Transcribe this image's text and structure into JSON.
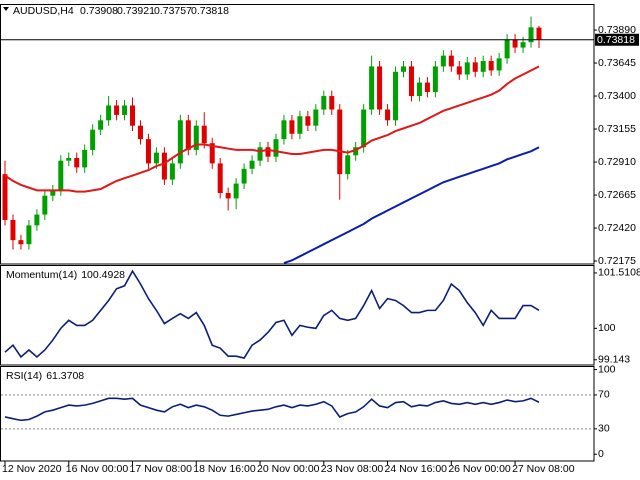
{
  "chart_data": [
    {
      "type": "candlestick",
      "title": "AUDUSD,H4",
      "categories": [
        "12 Nov 2020",
        null,
        null,
        null,
        null,
        null,
        null,
        null,
        "16 Nov 00:00",
        null,
        null,
        null,
        null,
        null,
        null,
        null,
        "17 Nov 08:00",
        null,
        null,
        null,
        null,
        null,
        null,
        null,
        "18 Nov 16:00",
        null,
        null,
        null,
        null,
        null,
        null,
        null,
        "20 Nov 00:00",
        null,
        null,
        null,
        null,
        null,
        null,
        null,
        "23 Nov 08:00",
        null,
        null,
        null,
        null,
        null,
        null,
        null,
        "24 Nov 16:00",
        null,
        null,
        null,
        null,
        null,
        null,
        null,
        "26 Nov 00:00",
        null,
        null,
        null,
        null,
        null,
        null,
        null,
        "27 Nov 08:00",
        null,
        null,
        null
      ],
      "open": [
        0.7282,
        0.7248,
        0.7233,
        0.723,
        0.7244,
        0.7252,
        0.7266,
        0.727,
        0.7292,
        0.7294,
        0.7287,
        0.73,
        0.7315,
        0.7322,
        0.7333,
        0.7326,
        0.7333,
        0.7318,
        0.7308,
        0.729,
        0.7298,
        0.7278,
        0.729,
        0.7322,
        0.73,
        0.7318,
        0.7305,
        0.729,
        0.7268,
        0.7264,
        0.7275,
        0.7286,
        0.7292,
        0.7302,
        0.7295,
        0.7308,
        0.7322,
        0.7312,
        0.7325,
        0.7318,
        0.733,
        0.734,
        0.733,
        0.7282,
        0.7296,
        0.7302,
        0.733,
        0.7362,
        0.733,
        0.7322,
        0.7358,
        0.7362,
        0.734,
        0.735,
        0.7343,
        0.7362,
        0.737,
        0.7362,
        0.7356,
        0.7365,
        0.7358,
        0.7366,
        0.7359,
        0.7368,
        0.7382,
        0.7376,
        0.738,
        0.73908
      ],
      "high": [
        0.7292,
        0.7252,
        0.7237,
        0.7248,
        0.7256,
        0.727,
        0.7274,
        0.7296,
        0.7298,
        0.7298,
        0.7304,
        0.7319,
        0.7326,
        0.734,
        0.7337,
        0.7337,
        0.7339,
        0.7322,
        0.7312,
        0.7302,
        0.7302,
        0.7294,
        0.7326,
        0.7326,
        0.7322,
        0.7328,
        0.7309,
        0.7294,
        0.7272,
        0.7279,
        0.729,
        0.7296,
        0.7306,
        0.7306,
        0.7312,
        0.7326,
        0.7326,
        0.7329,
        0.7329,
        0.7334,
        0.7344,
        0.7344,
        0.7334,
        0.73,
        0.7306,
        0.7334,
        0.737,
        0.7366,
        0.7334,
        0.7362,
        0.7366,
        0.7366,
        0.7354,
        0.7354,
        0.7366,
        0.7374,
        0.7374,
        0.7366,
        0.7369,
        0.7369,
        0.737,
        0.737,
        0.7372,
        0.7386,
        0.7386,
        0.7384,
        0.7399,
        0.73921
      ],
      "low": [
        0.7244,
        0.7226,
        0.7226,
        0.7226,
        0.724,
        0.7248,
        0.7262,
        0.7266,
        0.7288,
        0.7283,
        0.7283,
        0.7296,
        0.7311,
        0.7318,
        0.7322,
        0.7322,
        0.7314,
        0.7304,
        0.7286,
        0.7286,
        0.7274,
        0.7274,
        0.7286,
        0.7296,
        0.7296,
        0.7301,
        0.7286,
        0.7264,
        0.7255,
        0.7256,
        0.7271,
        0.7282,
        0.7288,
        0.7291,
        0.7291,
        0.7304,
        0.7308,
        0.7308,
        0.7314,
        0.7314,
        0.7326,
        0.7326,
        0.7263,
        0.7278,
        0.7292,
        0.7298,
        0.7326,
        0.7326,
        0.7318,
        0.7318,
        0.7354,
        0.7336,
        0.7336,
        0.7339,
        0.7339,
        0.7358,
        0.7358,
        0.7352,
        0.7352,
        0.7354,
        0.7354,
        0.7355,
        0.7355,
        0.7364,
        0.7372,
        0.7372,
        0.7376,
        0.73757
      ],
      "close": [
        0.7248,
        0.7233,
        0.723,
        0.7244,
        0.7252,
        0.7266,
        0.727,
        0.7292,
        0.7294,
        0.7287,
        0.73,
        0.7315,
        0.7322,
        0.7333,
        0.7326,
        0.7333,
        0.7318,
        0.7308,
        0.729,
        0.7298,
        0.7278,
        0.729,
        0.7322,
        0.73,
        0.7318,
        0.7305,
        0.729,
        0.7268,
        0.7264,
        0.7275,
        0.7286,
        0.7292,
        0.7302,
        0.7295,
        0.7308,
        0.7322,
        0.7312,
        0.7325,
        0.7318,
        0.733,
        0.734,
        0.733,
        0.7282,
        0.7296,
        0.7302,
        0.733,
        0.7362,
        0.733,
        0.7322,
        0.7358,
        0.7362,
        0.734,
        0.735,
        0.7343,
        0.7362,
        0.737,
        0.7362,
        0.7356,
        0.7365,
        0.7358,
        0.7366,
        0.7359,
        0.7368,
        0.7382,
        0.7376,
        0.738,
        0.7391,
        0.73818
      ],
      "up_color": "#00a000",
      "down_color": "#e00000",
      "series": [
        {
          "color": "#e01818",
          "values": [
            0.7281,
            0.7277,
            0.7274,
            0.7272,
            0.727,
            0.727,
            0.727,
            0.727,
            0.727,
            0.7269,
            0.7269,
            0.727,
            0.7271,
            0.7274,
            0.7277,
            0.7279,
            0.7281,
            0.7283,
            0.7285,
            0.7288,
            0.729,
            0.7294,
            0.7298,
            0.7301,
            0.7304,
            0.7304,
            0.7303,
            0.7302,
            0.7301,
            0.73,
            0.73,
            0.73,
            0.7299,
            0.73,
            0.7299,
            0.7298,
            0.7297,
            0.7297,
            0.7298,
            0.7299,
            0.73,
            0.73,
            0.7299,
            0.7298,
            0.73,
            0.7303,
            0.7307,
            0.7309,
            0.7311,
            0.7314,
            0.7316,
            0.7318,
            0.732,
            0.7323,
            0.7326,
            0.7329,
            0.7331,
            0.7333,
            0.7335,
            0.7337,
            0.7339,
            0.7341,
            0.7344,
            0.7349,
            0.7353,
            0.7356,
            0.7359,
            0.7362
          ]
        },
        {
          "color": "#0a1ea8",
          "values": [
            null,
            null,
            null,
            null,
            null,
            null,
            null,
            null,
            null,
            null,
            null,
            null,
            null,
            null,
            null,
            null,
            null,
            null,
            null,
            null,
            null,
            null,
            null,
            null,
            null,
            null,
            null,
            null,
            null,
            null,
            null,
            null,
            null,
            null,
            null,
            0.7216,
            0.7218,
            0.7221,
            0.7224,
            0.7227,
            0.723,
            0.7233,
            0.7236,
            0.7239,
            0.7242,
            0.7245,
            0.7249,
            0.7252,
            0.7255,
            0.7258,
            0.7261,
            0.7264,
            0.7267,
            0.727,
            0.7273,
            0.7276,
            0.7278,
            0.728,
            0.7282,
            0.7284,
            0.7286,
            0.7288,
            0.729,
            0.7293,
            0.7295,
            0.7297,
            0.7299,
            0.7302
          ]
        }
      ],
      "ylim": [
        0.72153,
        0.74076
      ],
      "yticks": [
        {
          "value": 0.7389,
          "label": "0.73890"
        },
        0.73645,
        {
          "value": 0.734,
          "label": "0.73400"
        },
        0.73155,
        {
          "value": 0.7291,
          "label": "0.72910"
        },
        0.72665,
        {
          "value": 0.7242,
          "label": "0.72420"
        },
        0.72175
      ]
    },
    {
      "type": "line",
      "title": "Momentum(14)",
      "color": "#0b1f7a",
      "values": [
        99.35,
        99.54,
        99.22,
        99.41,
        99.22,
        99.41,
        99.68,
        100.0,
        100.22,
        100.08,
        100.08,
        100.22,
        100.49,
        100.76,
        101.08,
        101.16,
        101.56,
        101.21,
        100.81,
        100.49,
        100.13,
        100.27,
        100.4,
        100.27,
        100.43,
        100.08,
        99.54,
        99.46,
        99.24,
        99.24,
        99.19,
        99.54,
        99.68,
        99.89,
        100.16,
        100.22,
        99.81,
        100.08,
        100.03,
        100.0,
        100.35,
        100.49,
        100.27,
        100.22,
        100.27,
        100.62,
        101.03,
        100.54,
        100.81,
        100.76,
        100.62,
        100.43,
        100.43,
        100.49,
        100.49,
        100.76,
        101.21,
        101.03,
        100.7,
        100.43,
        100.08,
        100.49,
        100.27,
        100.27,
        100.27,
        100.62,
        100.62,
        100.4928
      ],
      "ylim": [
        99.0,
        101.7
      ],
      "yticks": [
        101.5108,
        100,
        99.143
      ]
    },
    {
      "type": "line",
      "title": "RSI(14)",
      "color": "#0b1f7a",
      "values": [
        44,
        42,
        40,
        41,
        45,
        50,
        52,
        55,
        58,
        57,
        58,
        60,
        63,
        66,
        66,
        65,
        66,
        58,
        55,
        52,
        50,
        56,
        59,
        55,
        58,
        56,
        52,
        46,
        45,
        47,
        49,
        51,
        52,
        53,
        56,
        58,
        55,
        58,
        57,
        59,
        62,
        57,
        44,
        48,
        50,
        56,
        65,
        57,
        55,
        61,
        62,
        56,
        58,
        57,
        61,
        63,
        60,
        59,
        61,
        59,
        61,
        59,
        61,
        64,
        62,
        63,
        66,
        61.3708
      ],
      "ylim": [
        -8,
        103
      ],
      "yticks": [
        100,
        70,
        30,
        0
      ],
      "levels": [
        70,
        30
      ]
    }
  ]
}
